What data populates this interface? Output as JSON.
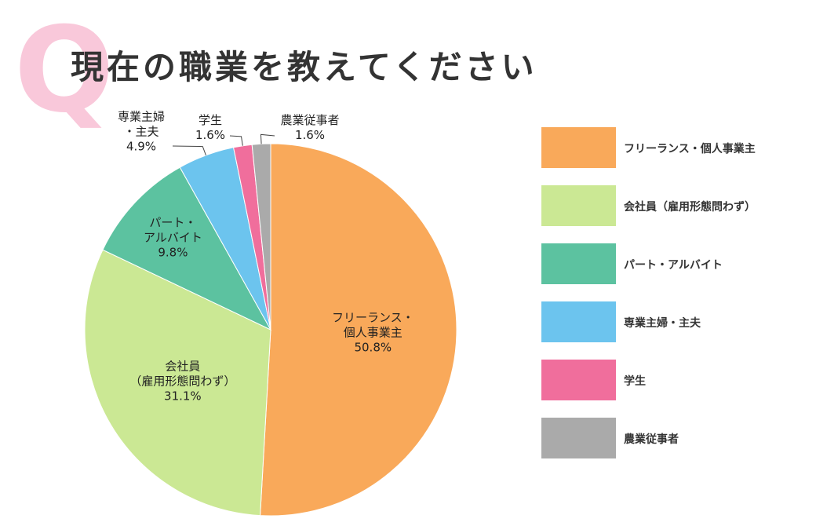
{
  "chart_data": {
    "type": "pie",
    "title_prefix": "Q",
    "title": "現在の職業を教えてください",
    "categories": [
      "フリーランス・個人事業主",
      "会社員（雇用形態問わず）",
      "パート・アルバイト",
      "専業主婦・主夫",
      "学生",
      "農業従事者"
    ],
    "slice_labels": [
      "フリーランス・\n個人事業主",
      "会社員\n（雇用形態問わず）",
      "パート・\nアルバイト",
      "専業主婦\n・主夫",
      "学生",
      "農業従事者"
    ],
    "values": [
      50.8,
      31.1,
      9.8,
      4.9,
      1.6,
      1.6
    ],
    "value_labels": [
      "50.8%",
      "31.1%",
      "9.8%",
      "4.9%",
      "1.6%",
      "1.6%"
    ],
    "colors": [
      "#f9a95a",
      "#cbe894",
      "#5cc2a0",
      "#6cc4ee",
      "#f06e9c",
      "#aaaaaa"
    ],
    "legend": "right"
  }
}
